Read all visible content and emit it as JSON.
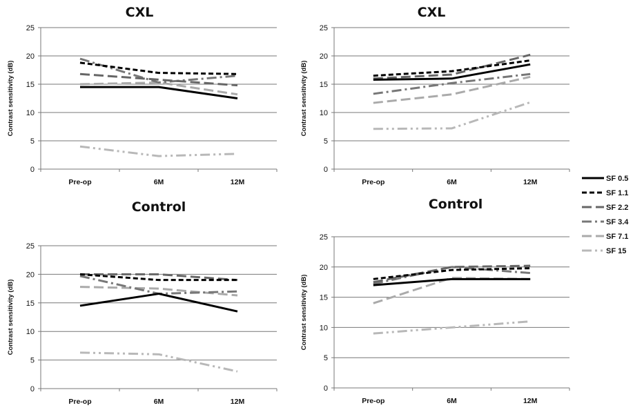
{
  "legend": [
    {
      "label": "SF 0.5",
      "color": "#000000",
      "dash": "solid",
      "width": 3
    },
    {
      "label": "SF 1.1",
      "color": "#000000",
      "dash": "dash",
      "width": 3
    },
    {
      "label": "SF 2.2",
      "color": "#666666",
      "dash": "longdash",
      "width": 3
    },
    {
      "label": "SF 3.4",
      "color": "#777777",
      "dash": "dashdot",
      "width": 3
    },
    {
      "label": "SF 7.1",
      "color": "#aaaaaa",
      "dash": "longdash",
      "width": 3
    },
    {
      "label": "SF 15",
      "color": "#b8b8b8",
      "dash": "dashdotdot",
      "width": 3
    }
  ],
  "chart_data": [
    {
      "type": "line",
      "title": "CXL",
      "ylabel": "Contrast sensitivity (dB)",
      "categories": [
        "Pre-op",
        "6M",
        "12M"
      ],
      "ylim": [
        0,
        25
      ],
      "yticks": [
        "0",
        "5",
        "10",
        "15",
        "20",
        "25"
      ],
      "series": [
        {
          "name": "SF 0.5",
          "values": [
            14.5,
            14.5,
            12.5
          ]
        },
        {
          "name": "SF 1.1",
          "values": [
            18.8,
            17.0,
            16.8
          ]
        },
        {
          "name": "SF 2.2",
          "values": [
            16.8,
            15.8,
            14.8
          ]
        },
        {
          "name": "SF 3.4",
          "values": [
            19.5,
            15.3,
            16.5
          ]
        },
        {
          "name": "SF 7.1",
          "values": [
            15.0,
            15.3,
            13.2
          ]
        },
        {
          "name": "SF 15",
          "values": [
            4.0,
            2.3,
            2.7
          ]
        }
      ]
    },
    {
      "type": "line",
      "title": "CXL",
      "ylabel": "Contrast sensitivity (dB)",
      "categories": [
        "Pre-op",
        "6M",
        "12M"
      ],
      "ylim": [
        0,
        25
      ],
      "yticks": [
        "0",
        "5",
        "10",
        "15",
        "20",
        "25"
      ],
      "series": [
        {
          "name": "SF 0.5",
          "values": [
            15.8,
            16.0,
            18.5
          ]
        },
        {
          "name": "SF 1.1",
          "values": [
            16.5,
            17.3,
            19.2
          ]
        },
        {
          "name": "SF 2.2",
          "values": [
            16.0,
            16.7,
            20.2
          ]
        },
        {
          "name": "SF 3.4",
          "values": [
            13.3,
            15.2,
            16.8
          ]
        },
        {
          "name": "SF 7.1",
          "values": [
            11.7,
            13.2,
            16.3
          ]
        },
        {
          "name": "SF 15",
          "values": [
            7.1,
            7.2,
            11.8
          ]
        }
      ]
    },
    {
      "type": "line",
      "title": "Control",
      "ylabel": "Contrast sensitivity (dB)",
      "categories": [
        "Pre-op",
        "6M",
        "12M"
      ],
      "ylim": [
        0,
        25
      ],
      "yticks": [
        "0",
        "5",
        "10",
        "15",
        "20",
        "25"
      ],
      "series": [
        {
          "name": "SF 0.5",
          "values": [
            14.5,
            16.6,
            13.5
          ]
        },
        {
          "name": "SF 1.1",
          "values": [
            20.0,
            19.0,
            19.0
          ]
        },
        {
          "name": "SF 2.2",
          "values": [
            20.0,
            20.0,
            19.0
          ]
        },
        {
          "name": "SF 3.4",
          "values": [
            19.7,
            16.6,
            17.0
          ]
        },
        {
          "name": "SF 7.1",
          "values": [
            17.8,
            17.5,
            16.3
          ]
        },
        {
          "name": "SF 15",
          "values": [
            6.3,
            6.0,
            3.0
          ]
        }
      ]
    },
    {
      "type": "line",
      "title": "Control",
      "ylabel": "Contrast sensitivity (dB)",
      "categories": [
        "Pre-op",
        "6M",
        "12M"
      ],
      "ylim": [
        0,
        25
      ],
      "yticks": [
        "0",
        "5",
        "10",
        "15",
        "20",
        "25"
      ],
      "series": [
        {
          "name": "SF 0.5",
          "values": [
            17.0,
            18.0,
            18.0
          ]
        },
        {
          "name": "SF 1.1",
          "values": [
            18.0,
            19.5,
            19.8
          ]
        },
        {
          "name": "SF 2.2",
          "values": [
            17.5,
            20.0,
            20.2
          ]
        },
        {
          "name": "SF 3.4",
          "values": [
            17.2,
            20.0,
            19.0
          ]
        },
        {
          "name": "SF 7.1",
          "values": [
            14.0,
            18.2,
            18.0
          ]
        },
        {
          "name": "SF 15",
          "values": [
            9.0,
            10.0,
            11.0
          ]
        }
      ]
    }
  ]
}
